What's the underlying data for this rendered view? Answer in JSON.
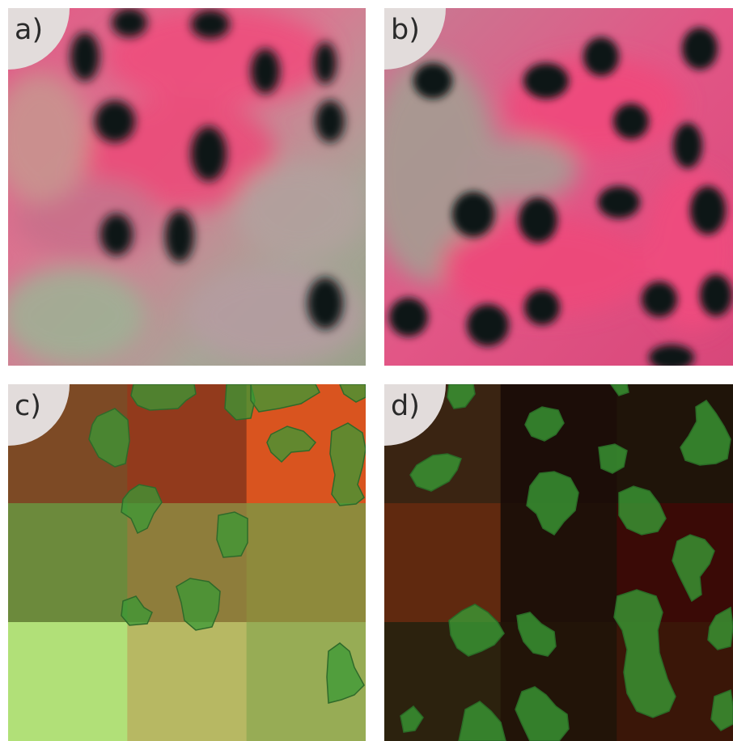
{
  "panels": [
    {
      "label": "a)",
      "kind": "false-color-satellite-patch"
    },
    {
      "label": "b)",
      "kind": "false-color-satellite-patch"
    },
    {
      "label": "c)",
      "kind": "tree-crown-mask-over-grid"
    },
    {
      "label": "d)",
      "kind": "tree-crown-mask-over-grid"
    }
  ],
  "colors": {
    "vegetation_pink": "#f0507a",
    "tree_crown_dark": "#0e1512",
    "crown_mask_green": "#3a9a35"
  },
  "grid_c": [
    [
      "#7d4a25",
      "#923a1c",
      "#d9541f"
    ],
    [
      "#6c8a3c",
      "#8e7d3b",
      "#8e8a3c"
    ],
    [
      "#b1e078",
      "#b7b863",
      "#97ac55"
    ]
  ],
  "grid_d": [
    [
      "#3a2412",
      "#1c0d08",
      "#1f1409"
    ],
    [
      "#60290f",
      "#1f1008",
      "#3a0a06"
    ],
    [
      "#2c220e",
      "#221408",
      "#3a1608"
    ]
  ]
}
